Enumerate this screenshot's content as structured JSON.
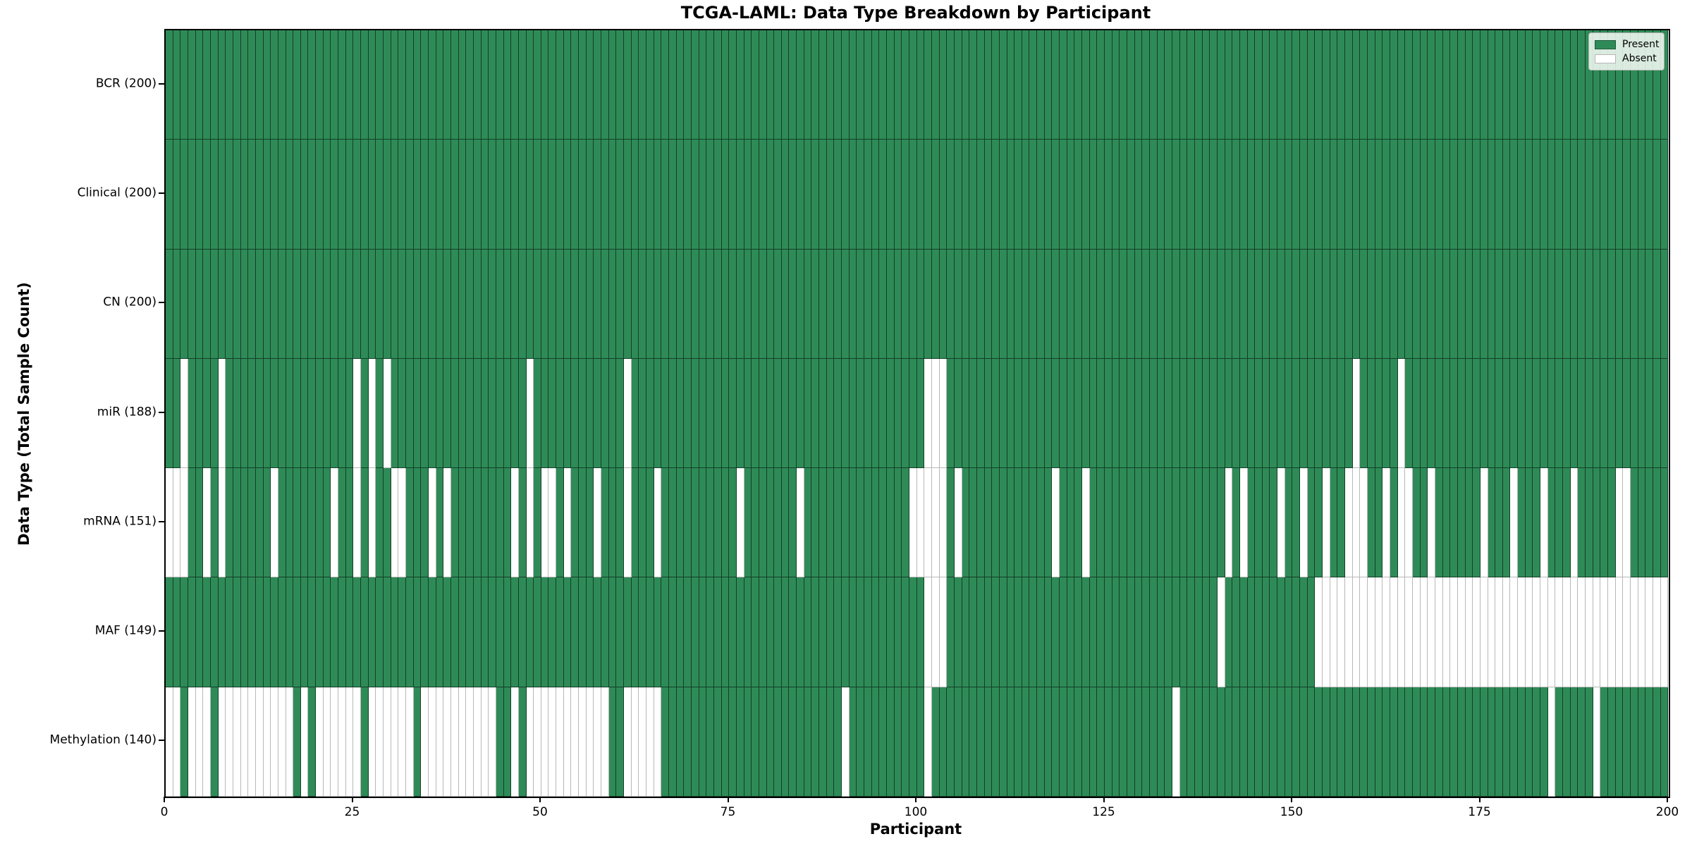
{
  "figure": {
    "title": "TCGA-LAML: Data Type Breakdown by Participant",
    "xlabel": "Participant",
    "ylabel": "Data Type (Total Sample Count)"
  },
  "legend": {
    "present_label": "Present",
    "absent_label": "Absent"
  },
  "colors": {
    "present": "#2E8B57",
    "absent": "#FFFFFF"
  },
  "chart_data": {
    "type": "heatmap",
    "title": "TCGA-LAML: Data Type Breakdown by Participant",
    "xlabel": "Participant",
    "ylabel": "Data Type (Total Sample Count)",
    "x_ticks": [
      0,
      25,
      50,
      75,
      100,
      125,
      150,
      175,
      200
    ],
    "n_participants": 200,
    "xlim": [
      0,
      200
    ],
    "grid": false,
    "legend_position": "upper right",
    "legend_entries": [
      "Present",
      "Absent"
    ],
    "value_encoding": {
      "present": 1,
      "absent": 0
    },
    "rows": [
      {
        "label": "BCR (200)",
        "data_type": "BCR",
        "present_count": 200,
        "absent_participants": []
      },
      {
        "label": "Clinical (200)",
        "data_type": "Clinical",
        "present_count": 200,
        "absent_participants": []
      },
      {
        "label": "CN (200)",
        "data_type": "CN",
        "present_count": 200,
        "absent_participants": []
      },
      {
        "label": "miR (188)",
        "data_type": "miR",
        "present_count": 188,
        "absent_participants": [
          2,
          7,
          25,
          27,
          29,
          48,
          61,
          101,
          102,
          103,
          158,
          164
        ]
      },
      {
        "label": "mRNA (151)",
        "data_type": "mRNA",
        "present_count": 151,
        "absent_participants": [
          0,
          1,
          2,
          5,
          7,
          14,
          22,
          25,
          27,
          30,
          31,
          35,
          37,
          46,
          48,
          50,
          51,
          53,
          57,
          61,
          65,
          76,
          84,
          99,
          100,
          101,
          102,
          103,
          105,
          118,
          122,
          141,
          143,
          148,
          151,
          154,
          157,
          158,
          159,
          162,
          164,
          165,
          168,
          175,
          179,
          183,
          187,
          193,
          194
        ]
      },
      {
        "label": "MAF (149)",
        "data_type": "MAF",
        "present_count": 149,
        "absent_participants": [
          101,
          102,
          103,
          140,
          153,
          154,
          155,
          156,
          157,
          158,
          159,
          160,
          161,
          162,
          163,
          164,
          165,
          166,
          167,
          168,
          169,
          170,
          171,
          172,
          173,
          174,
          175,
          176,
          177,
          178,
          179,
          180,
          181,
          182,
          183,
          184,
          185,
          186,
          187,
          188,
          189,
          190,
          191,
          192,
          193,
          194,
          195,
          196,
          197,
          198,
          199
        ]
      },
      {
        "label": "Methylation (140)",
        "data_type": "Methylation",
        "present_count": 140,
        "absent_participants": [
          0,
          1,
          3,
          4,
          5,
          7,
          8,
          9,
          10,
          11,
          12,
          13,
          14,
          15,
          16,
          18,
          20,
          21,
          22,
          23,
          24,
          25,
          27,
          28,
          29,
          30,
          31,
          32,
          34,
          35,
          36,
          37,
          38,
          39,
          40,
          41,
          42,
          43,
          46,
          48,
          49,
          50,
          51,
          52,
          53,
          54,
          55,
          56,
          57,
          58,
          61,
          62,
          63,
          64,
          65,
          90,
          101,
          134,
          184,
          190
        ]
      }
    ]
  }
}
